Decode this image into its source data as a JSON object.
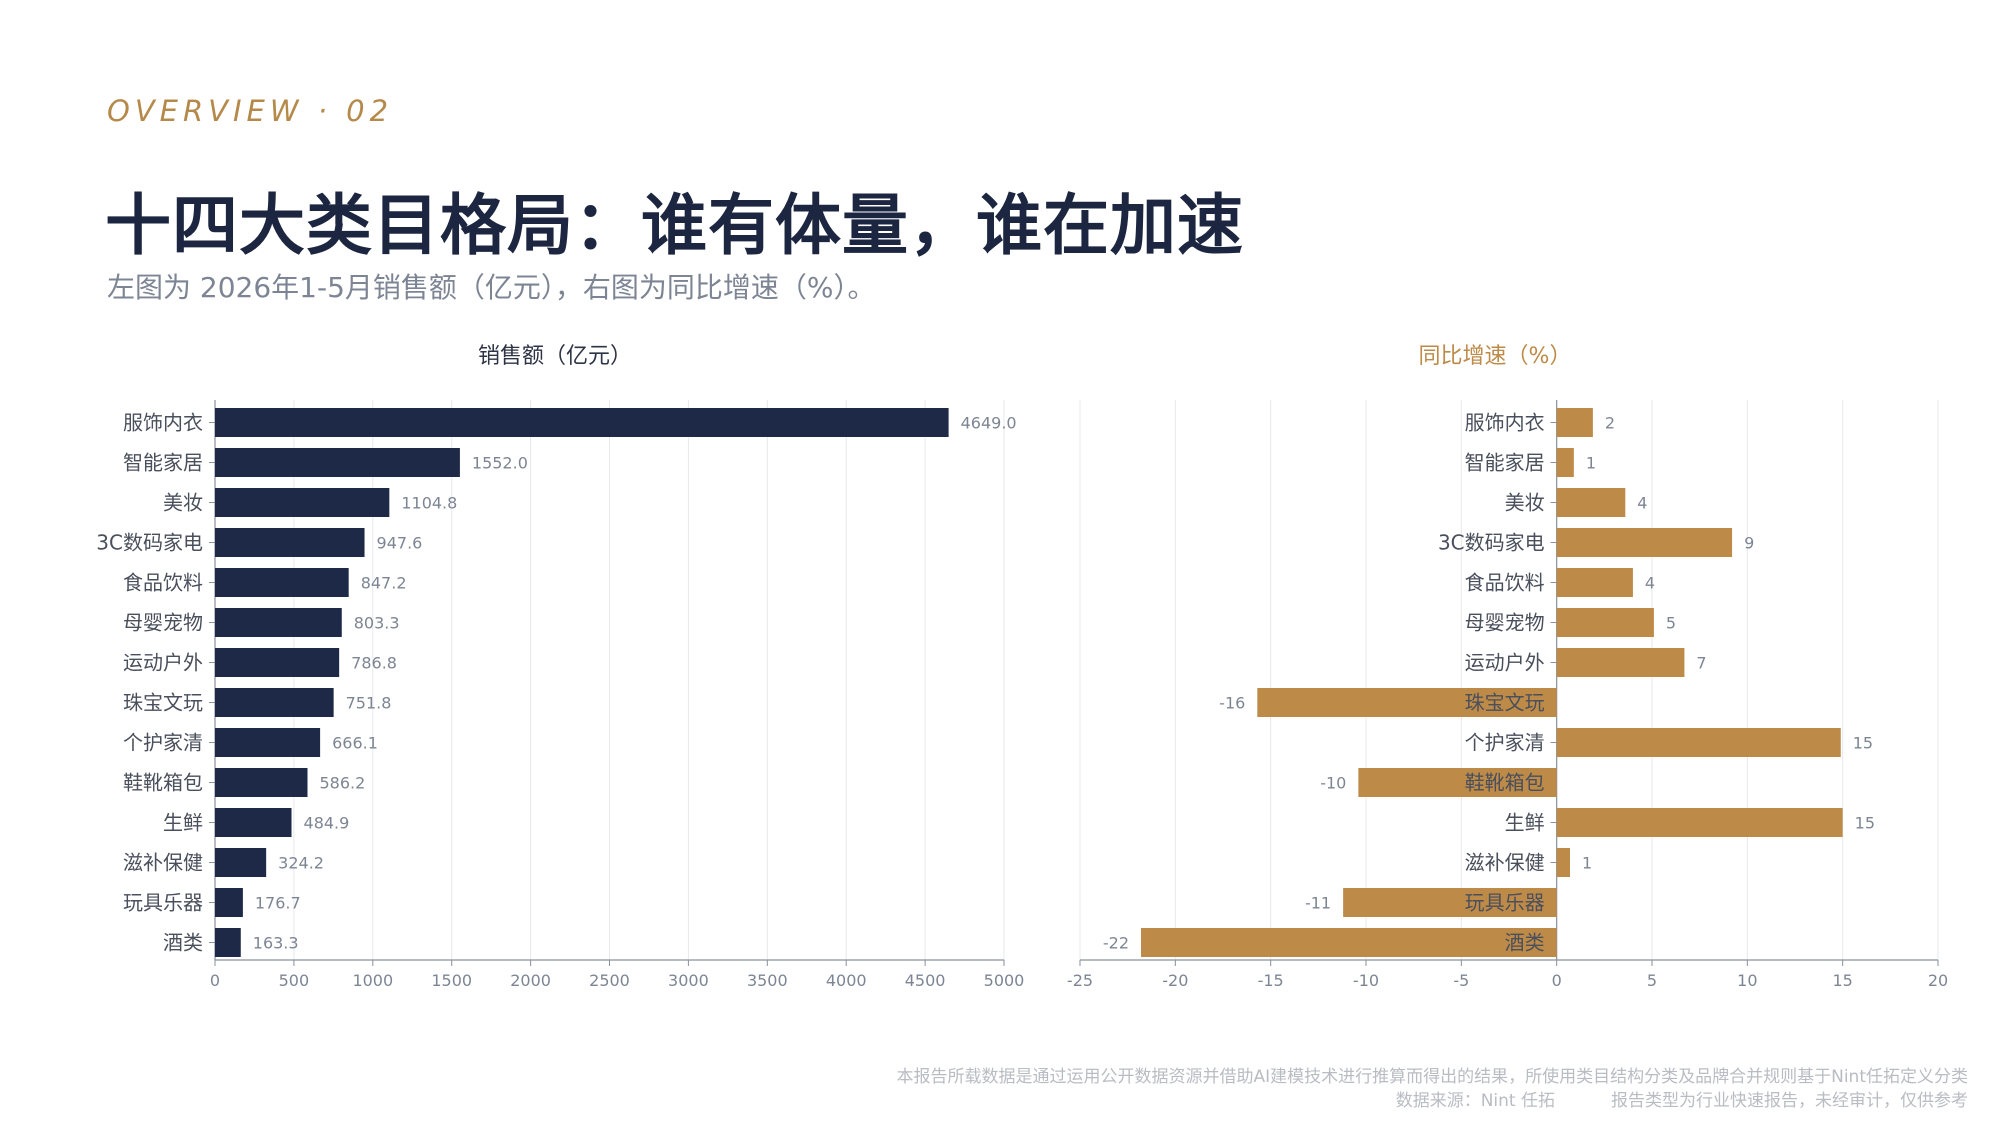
{
  "header": {
    "kicker": "OVERVIEW · 02",
    "title": "十四大类目格局：谁有体量，谁在加速",
    "subtitle": "左图为 2026年1-5月销售额（亿元），右图为同比增速（%）。"
  },
  "footer": {
    "note": "本报告所载数据是通过运用公开数据资源并借助AI建模技术进行推算而得出的结果，所使用类目结构分类及品牌合并规则基于Nint任拓定义分类",
    "source": "数据来源：Nint 任拓",
    "disclaimer": "报告类型为行业快速报告，未经审计，仅供参考"
  },
  "colors": {
    "navy": "#1e2947",
    "gold": "#bd8a48",
    "grid": "#e6e8ec",
    "axis": "#8a909c",
    "label": "#4a4f5c",
    "value": "#7d8594"
  },
  "chart_data": [
    {
      "type": "bar",
      "orientation": "horizontal",
      "title": "销售额（亿元）",
      "categories": [
        "服饰内衣",
        "智能家居",
        "美妆",
        "3C数码家电",
        "食品饮料",
        "母婴宠物",
        "运动户外",
        "珠宝文玩",
        "个护家清",
        "鞋靴箱包",
        "生鲜",
        "滋补保健",
        "玩具乐器",
        "酒类"
      ],
      "values": [
        4649.0,
        1552.0,
        1104.8,
        947.6,
        847.2,
        803.3,
        786.8,
        751.8,
        666.1,
        586.2,
        484.9,
        324.2,
        176.7,
        163.3
      ],
      "value_labels": [
        "4649.0",
        "1552.0",
        "1104.8",
        "947.6",
        "847.2",
        "803.3",
        "786.8",
        "751.8",
        "666.1",
        "586.2",
        "484.9",
        "324.2",
        "176.7",
        "163.3"
      ],
      "xlim": [
        0,
        5000
      ],
      "xticks": [
        0,
        500,
        1000,
        1500,
        2000,
        2500,
        3000,
        3500,
        4000,
        4500,
        5000
      ],
      "grid": true,
      "color": "#1e2947"
    },
    {
      "type": "bar",
      "orientation": "horizontal",
      "title": "同比增速（%）",
      "categories": [
        "服饰内衣",
        "智能家居",
        "美妆",
        "3C数码家电",
        "食品饮料",
        "母婴宠物",
        "运动户外",
        "珠宝文玩",
        "个护家清",
        "鞋靴箱包",
        "生鲜",
        "滋补保健",
        "玩具乐器",
        "酒类"
      ],
      "values": [
        1.9,
        0.9,
        3.6,
        9.2,
        4.0,
        5.1,
        6.7,
        -15.7,
        14.9,
        -10.4,
        15.0,
        0.7,
        -11.2,
        -21.8
      ],
      "value_labels": [
        "2",
        "1",
        "4",
        "9",
        "4",
        "5",
        "7",
        "-16",
        "15",
        "-10",
        "15",
        "1",
        "-11",
        "-22"
      ],
      "xlim": [
        -25,
        20
      ],
      "xticks": [
        -25,
        -20,
        -15,
        -10,
        -5,
        0,
        5,
        10,
        15,
        20
      ],
      "grid": true,
      "color": "#bd8a48"
    }
  ]
}
